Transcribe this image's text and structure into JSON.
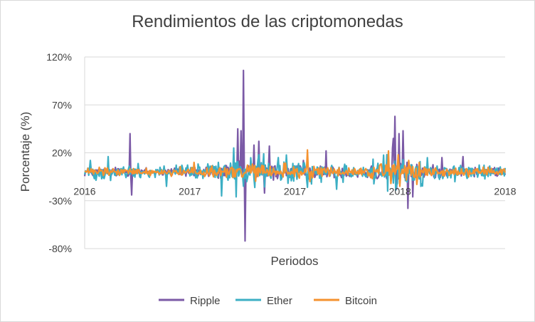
{
  "chart_data": {
    "type": "line",
    "title": "Rendimientos de las criptomonedas",
    "xlabel": "Periodos",
    "ylabel": "Porcentaje (%)",
    "ylim": [
      -80,
      120
    ],
    "ytick_values": [
      120,
      70,
      20,
      -30,
      -80
    ],
    "ytick_labels": [
      "120%",
      "70%",
      "20%",
      "-30%",
      "-80%"
    ],
    "x_tick_labels": [
      "2016",
      "2017",
      "2017",
      "2018",
      "2018"
    ],
    "x_tick_positions": [
      0,
      0.25,
      0.5,
      0.75,
      1.0
    ],
    "gridlines": "horizontal",
    "legend_position": "bottom",
    "n_points": 520,
    "series": [
      {
        "name": "Ripple",
        "color": "#7b5aa6",
        "noise_amplitude": 4,
        "spikes": [
          {
            "x": 0.108,
            "value": 40
          },
          {
            "x": 0.111,
            "value": -24
          },
          {
            "x": 0.365,
            "value": 45
          },
          {
            "x": 0.372,
            "value": 43
          },
          {
            "x": 0.378,
            "value": 106
          },
          {
            "x": 0.381,
            "value": -72
          },
          {
            "x": 0.403,
            "value": 28
          },
          {
            "x": 0.415,
            "value": 32
          },
          {
            "x": 0.427,
            "value": -22
          },
          {
            "x": 0.44,
            "value": 27
          },
          {
            "x": 0.52,
            "value": 12
          },
          {
            "x": 0.575,
            "value": 22
          },
          {
            "x": 0.72,
            "value": 8
          },
          {
            "x": 0.732,
            "value": 25
          },
          {
            "x": 0.735,
            "value": 35
          },
          {
            "x": 0.738,
            "value": 58
          },
          {
            "x": 0.742,
            "value": -18
          },
          {
            "x": 0.748,
            "value": 40
          },
          {
            "x": 0.757,
            "value": 43
          },
          {
            "x": 0.768,
            "value": -38
          },
          {
            "x": 0.78,
            "value": -26
          },
          {
            "x": 0.85,
            "value": 15
          },
          {
            "x": 0.9,
            "value": 16
          }
        ]
      },
      {
        "name": "Ether",
        "color": "#3cafc4",
        "noise_amplitude": 6,
        "spikes": [
          {
            "x": 0.013,
            "value": 12
          },
          {
            "x": 0.056,
            "value": 16
          },
          {
            "x": 0.195,
            "value": -15
          },
          {
            "x": 0.325,
            "value": -25
          },
          {
            "x": 0.355,
            "value": 25
          },
          {
            "x": 0.36,
            "value": -26
          },
          {
            "x": 0.415,
            "value": 18
          },
          {
            "x": 0.46,
            "value": 15
          },
          {
            "x": 0.53,
            "value": -16
          },
          {
            "x": 0.6,
            "value": -18
          },
          {
            "x": 0.72,
            "value": -20
          },
          {
            "x": 0.74,
            "value": -19
          },
          {
            "x": 0.8,
            "value": -15
          }
        ]
      },
      {
        "name": "Bitcoin",
        "color": "#f5922f",
        "noise_amplitude": 3.5,
        "spikes": [
          {
            "x": 0.26,
            "value": 10
          },
          {
            "x": 0.53,
            "value": 23
          },
          {
            "x": 0.535,
            "value": -10
          },
          {
            "x": 0.723,
            "value": 22
          },
          {
            "x": 0.728,
            "value": -12
          },
          {
            "x": 0.745,
            "value": 18
          },
          {
            "x": 0.75,
            "value": -15
          },
          {
            "x": 0.77,
            "value": 12
          },
          {
            "x": 0.79,
            "value": -13
          },
          {
            "x": 0.795,
            "value": 10
          }
        ]
      }
    ]
  }
}
